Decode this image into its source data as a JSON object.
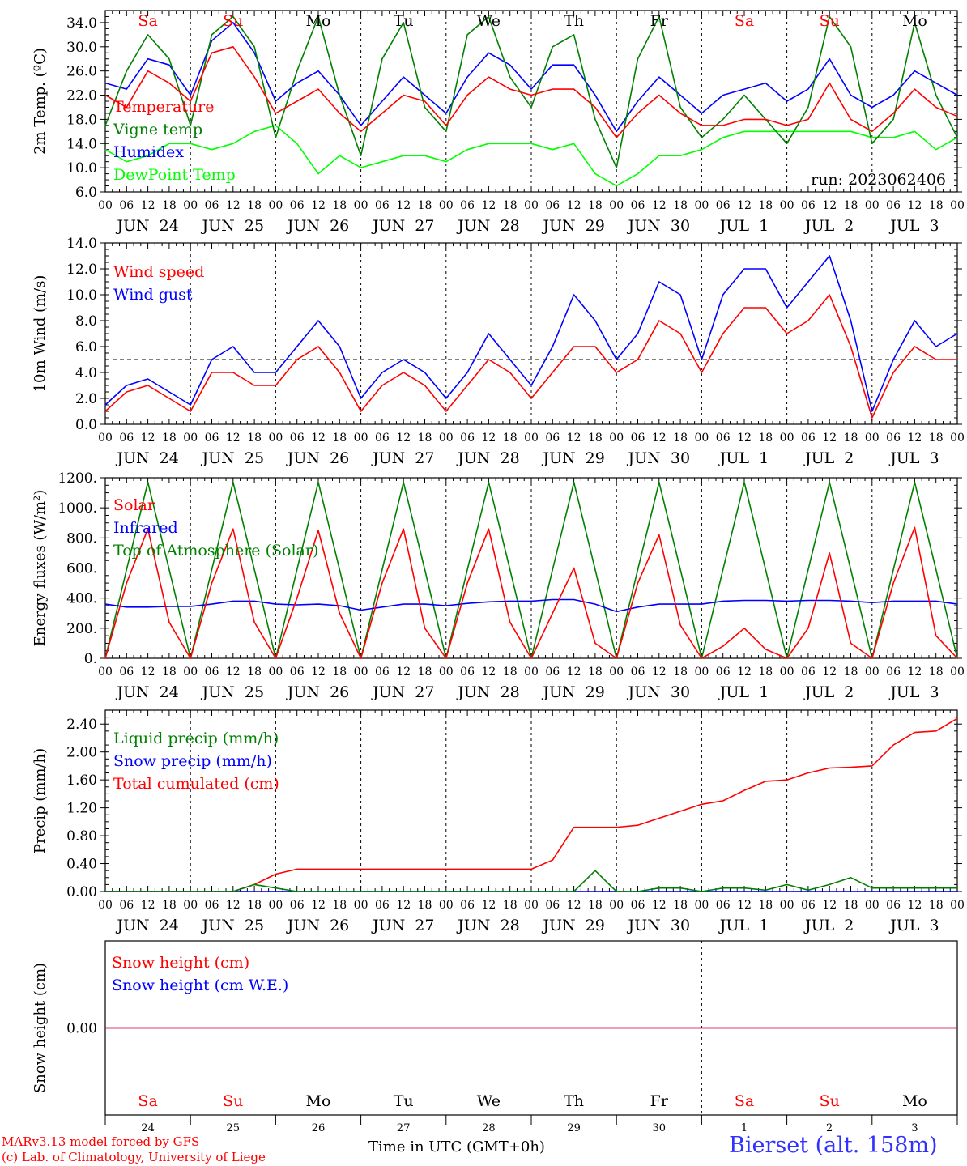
{
  "site": {
    "title": "Bierset (alt. 158m)"
  },
  "footer": {
    "line1": "MARv3.13 model forced by GFS",
    "line2": "(c) Lab. of Climatology, University of Liege",
    "time_label": "Time in UTC (GMT+0h)"
  },
  "run_label": "run: 2023062406",
  "days": [
    "JUN 24",
    "JUN 25",
    "JUN 26",
    "JUN 27",
    "JUN 28",
    "JUN 29",
    "JUN 30",
    "JUL  1",
    "JUL  2",
    "JUL  3"
  ],
  "day_numbers": [
    "24",
    "25",
    "26",
    "27",
    "28",
    "29",
    "30",
    "1",
    "2",
    "3"
  ],
  "weekdays": [
    "Sa",
    "Su",
    "Mo",
    "Tu",
    "We",
    "Th",
    "Fr",
    "Sa",
    "Su",
    "Mo"
  ],
  "weekday_colors": [
    "#ff0000",
    "#ff0000",
    "#000000",
    "#000000",
    "#000000",
    "#000000",
    "#000000",
    "#ff0000",
    "#ff0000",
    "#000000"
  ],
  "hour_labels": [
    "00",
    "06",
    "12",
    "18"
  ],
  "colors": {
    "red": "#ff0000",
    "green": "#008000",
    "blue": "#0000ff",
    "lightgreen": "#00ff00",
    "purple": "#8000a0"
  },
  "chart_data": [
    {
      "type": "line",
      "ylabel": "2m Temp. (ºC)",
      "ylim": [
        6,
        36
      ],
      "yticks": [
        "6.0",
        "10.0",
        "14.0",
        "18.0",
        "22.0",
        "26.0",
        "30.0",
        "34.0"
      ],
      "x_hours": [
        0,
        6,
        12,
        18,
        24,
        30,
        36,
        42,
        48,
        54,
        60,
        66,
        72,
        78,
        84,
        90,
        96,
        102,
        108,
        114,
        120,
        126,
        132,
        138,
        144,
        150,
        156,
        162,
        168,
        174,
        180,
        186,
        192,
        198,
        204,
        210,
        216,
        222,
        228,
        234,
        240
      ],
      "series": [
        {
          "name": "Temperature",
          "color": "#ff0000",
          "values": [
            22,
            20,
            26,
            24,
            21,
            29,
            30,
            25,
            19,
            21,
            23,
            19,
            16,
            19,
            22,
            21,
            17,
            22,
            25,
            23,
            22,
            23,
            23,
            20,
            15,
            19,
            22,
            19,
            17,
            17,
            18,
            18,
            17,
            18,
            24,
            18,
            16,
            19,
            23,
            20,
            18.5
          ]
        },
        {
          "name": "Vigne temp",
          "color": "#008000",
          "values": [
            17,
            26,
            32,
            28,
            17,
            32,
            35,
            30,
            15,
            26,
            35,
            22,
            12,
            28,
            34,
            20,
            16,
            32,
            35,
            25,
            20,
            30,
            32,
            18,
            10,
            28,
            35,
            20,
            15,
            18,
            22,
            18,
            14,
            20,
            35,
            30,
            14,
            18,
            34,
            22,
            15
          ]
        },
        {
          "name": "Humidex",
          "color": "#0000ff",
          "values": [
            24,
            23,
            28,
            27,
            22,
            31,
            34,
            29,
            21,
            24,
            26,
            22,
            17,
            21,
            25,
            22,
            19,
            25,
            29,
            27,
            23,
            27,
            27,
            22,
            16,
            21,
            25,
            22,
            19,
            22,
            23,
            24,
            21,
            23,
            28,
            22,
            20,
            22,
            26,
            24,
            22
          ]
        },
        {
          "name": "DewPoint Temp",
          "color": "#00ff00",
          "values": [
            13,
            11,
            12,
            14,
            14,
            13,
            14,
            16,
            17,
            14,
            9,
            12,
            10,
            11,
            12,
            12,
            11,
            13,
            14,
            14,
            14,
            13,
            14,
            9,
            7,
            9,
            12,
            12,
            13,
            15,
            16,
            16,
            16,
            16,
            16,
            16,
            15,
            15,
            16,
            13,
            15
          ]
        }
      ]
    },
    {
      "type": "line",
      "ylabel": "10m Wind (m/s)",
      "ylim": [
        0,
        14
      ],
      "yticks": [
        "0.0",
        "2.0",
        "4.0",
        "6.0",
        "8.0",
        "10.0",
        "12.0",
        "14.0"
      ],
      "hline": 5,
      "x_hours": [
        0,
        6,
        12,
        18,
        24,
        30,
        36,
        42,
        48,
        54,
        60,
        66,
        72,
        78,
        84,
        90,
        96,
        102,
        108,
        114,
        120,
        126,
        132,
        138,
        144,
        150,
        156,
        162,
        168,
        174,
        180,
        186,
        192,
        198,
        204,
        210,
        216,
        222,
        228,
        234,
        240
      ],
      "series": [
        {
          "name": "Wind speed",
          "color": "#ff0000",
          "values": [
            1,
            2.5,
            3,
            2,
            1,
            4,
            4,
            3,
            3,
            5,
            6,
            4,
            1,
            3,
            4,
            3,
            1,
            3,
            5,
            4,
            2,
            4,
            6,
            6,
            4,
            5,
            8,
            7,
            4,
            7,
            9,
            9,
            7,
            8,
            10,
            6,
            0.5,
            4,
            6,
            5,
            5
          ]
        },
        {
          "name": "Wind gust",
          "color": "#0000ff",
          "values": [
            1.5,
            3,
            3.5,
            2.5,
            1.5,
            5,
            6,
            4,
            4,
            6,
            8,
            6,
            2,
            4,
            5,
            4,
            2,
            4,
            7,
            5,
            3,
            6,
            10,
            8,
            5,
            7,
            11,
            10,
            5,
            10,
            12,
            12,
            9,
            11,
            13,
            8,
            1,
            5,
            8,
            6,
            7
          ]
        }
      ]
    },
    {
      "type": "line",
      "ylabel": "Energy fluxes (W/m²)",
      "ylim": [
        0,
        1200
      ],
      "yticks": [
        "0.",
        "200.",
        "400.",
        "600.",
        "800.",
        "1000.",
        "1200."
      ],
      "x_hours": [
        0,
        6,
        12,
        18,
        24,
        30,
        36,
        42,
        48,
        54,
        60,
        66,
        72,
        78,
        84,
        90,
        96,
        102,
        108,
        114,
        120,
        126,
        132,
        138,
        144,
        150,
        156,
        162,
        168,
        174,
        180,
        186,
        192,
        198,
        204,
        210,
        216,
        222,
        228,
        234,
        240
      ],
      "series": [
        {
          "name": "Solar",
          "color": "#ff0000",
          "values": [
            0,
            500,
            860,
            240,
            0,
            500,
            860,
            240,
            0,
            400,
            850,
            300,
            0,
            500,
            860,
            200,
            0,
            500,
            860,
            240,
            0,
            300,
            600,
            100,
            0,
            500,
            820,
            220,
            0,
            80,
            200,
            60,
            0,
            200,
            700,
            100,
            0,
            500,
            870,
            150,
            0
          ]
        },
        {
          "name": "Infrared",
          "color": "#0000ff",
          "values": [
            360,
            340,
            340,
            345,
            345,
            360,
            380,
            380,
            360,
            355,
            360,
            350,
            320,
            340,
            360,
            360,
            350,
            365,
            375,
            380,
            380,
            390,
            390,
            360,
            310,
            340,
            360,
            360,
            360,
            380,
            385,
            385,
            380,
            385,
            385,
            380,
            370,
            380,
            380,
            380,
            360
          ]
        },
        {
          "name": "Top of Atmosphere (Solar)",
          "color": "#008000",
          "values": [
            0,
            590,
            1170,
            590,
            0,
            590,
            1170,
            590,
            0,
            590,
            1170,
            590,
            0,
            590,
            1170,
            590,
            0,
            590,
            1170,
            590,
            0,
            590,
            1170,
            590,
            0,
            590,
            1170,
            590,
            0,
            590,
            1170,
            590,
            0,
            590,
            1170,
            590,
            0,
            590,
            1170,
            590,
            0
          ]
        }
      ]
    },
    {
      "type": "line",
      "ylabel": "Precip (mm/h)",
      "ylim": [
        0,
        2.6
      ],
      "yticks": [
        "0.00",
        "0.40",
        "0.80",
        "1.20",
        "1.60",
        "2.00",
        "2.40"
      ],
      "x_hours": [
        0,
        6,
        12,
        18,
        24,
        30,
        36,
        42,
        48,
        54,
        60,
        66,
        72,
        78,
        84,
        90,
        96,
        102,
        108,
        114,
        120,
        126,
        132,
        138,
        144,
        150,
        156,
        162,
        168,
        174,
        180,
        186,
        192,
        198,
        204,
        210,
        216,
        222,
        228,
        234,
        240
      ],
      "series": [
        {
          "name": "Liquid precip (mm/h)",
          "color": "#008000",
          "values": [
            0,
            0,
            0,
            0,
            0,
            0,
            0,
            0.1,
            0.05,
            0,
            0,
            0,
            0,
            0,
            0,
            0,
            0,
            0,
            0,
            0,
            0,
            0,
            0,
            0.3,
            0,
            0,
            0.05,
            0.05,
            0,
            0.05,
            0.05,
            0.02,
            0.1,
            0.02,
            0.1,
            0.2,
            0.05,
            0.05,
            0.05,
            0.05,
            0.05
          ]
        },
        {
          "name": "Snow precip (mm/h)",
          "color": "#0000ff",
          "values": [
            0,
            0,
            0,
            0,
            0,
            0,
            0,
            0,
            0,
            0,
            0,
            0,
            0,
            0,
            0,
            0,
            0,
            0,
            0,
            0,
            0,
            0,
            0,
            0,
            0,
            0,
            0,
            0,
            0,
            0,
            0,
            0,
            0,
            0,
            0,
            0,
            0,
            0,
            0,
            0,
            0
          ]
        },
        {
          "name": "Total cumulated (cm)",
          "color": "#ff0000",
          "values": [
            0,
            0,
            0,
            0,
            0,
            0,
            0,
            0.1,
            0.25,
            0.32,
            0.32,
            0.32,
            0.32,
            0.32,
            0.32,
            0.32,
            0.32,
            0.32,
            0.32,
            0.32,
            0.32,
            0.45,
            0.92,
            0.92,
            0.92,
            0.95,
            1.05,
            1.15,
            1.25,
            1.3,
            1.45,
            1.58,
            1.6,
            1.7,
            1.77,
            1.78,
            1.8,
            2.1,
            2.28,
            2.3,
            2.48
          ]
        }
      ]
    },
    {
      "type": "line",
      "ylabel": "Snow height (cm)",
      "ylim": [
        -1,
        1
      ],
      "yticks": [
        "0.00"
      ],
      "x_hours": [
        0,
        240
      ],
      "series": [
        {
          "name": "Snow height (cm)",
          "color": "#ff0000",
          "values": [
            0,
            0
          ]
        },
        {
          "name": "Snow height (cm W.E.)",
          "color": "#0000ff",
          "values": [
            0,
            0
          ]
        }
      ]
    }
  ]
}
